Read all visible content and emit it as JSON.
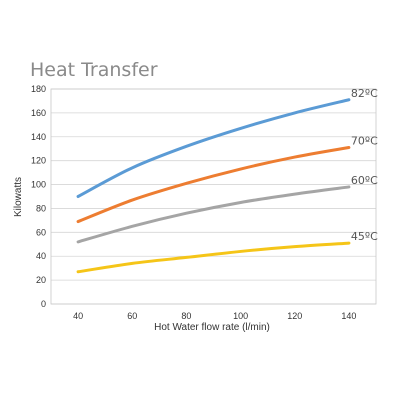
{
  "chart_data": {
    "type": "line",
    "title": "Heat Transfer",
    "xlabel": "Hot Water flow rate (l/min)",
    "ylabel": "Kilowatts",
    "xlim": [
      30,
      150
    ],
    "ylim": [
      0,
      180
    ],
    "xticks": [
      40,
      60,
      80,
      100,
      120,
      140
    ],
    "yticks": [
      0,
      20,
      40,
      60,
      80,
      100,
      120,
      140,
      160,
      180
    ],
    "grid": true,
    "x": [
      40,
      60,
      80,
      100,
      120,
      140
    ],
    "series": [
      {
        "name": "82ºC",
        "color": "#5b9bd5",
        "values": [
          90,
          114,
          132,
          147,
          160,
          171
        ]
      },
      {
        "name": "70ºC",
        "color": "#ed7d31",
        "values": [
          69,
          87,
          101,
          113,
          123,
          131
        ]
      },
      {
        "name": "60ºC",
        "color": "#a5a5a5",
        "values": [
          52,
          65,
          76,
          85,
          92,
          98
        ]
      },
      {
        "name": "45ºC",
        "color": "#f5c518",
        "values": [
          27,
          34,
          39,
          44,
          48,
          51
        ]
      }
    ]
  }
}
